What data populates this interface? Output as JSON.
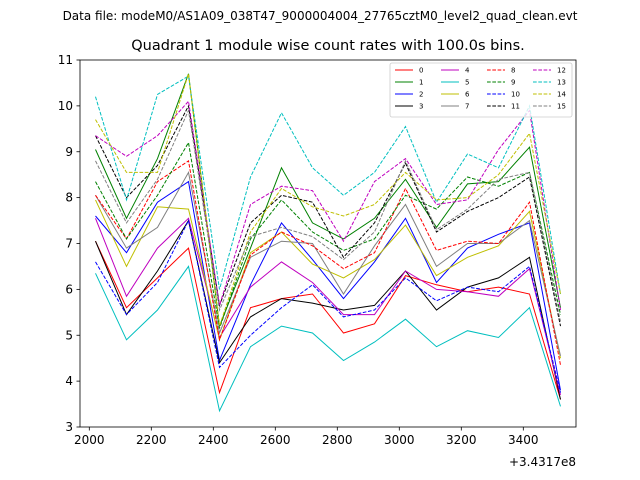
{
  "figure": {
    "suptitle": "Data file: modeM0/AS1A09_038T47_9000004004_27765cztM0_level2_quad_clean.evt",
    "title": "Quadrant 1 module wise count rates with 100.0s bins.",
    "x_offset_label": "+3.4317e8"
  },
  "chart_data": {
    "type": "line",
    "title": "Quadrant 1 module wise count rates with 100.0s bins.",
    "xlabel": "",
    "ylabel": "",
    "x_offset": "+3.4317e8",
    "xlim": [
      1970,
      3570
    ],
    "ylim": [
      3,
      11
    ],
    "xticks": [
      2000,
      2200,
      2400,
      2600,
      2800,
      3000,
      3200,
      3400
    ],
    "yticks": [
      3,
      4,
      5,
      6,
      7,
      8,
      9,
      10,
      11
    ],
    "grid": false,
    "legend": {
      "placement": "top-right",
      "columns": 4
    },
    "x": [
      2020,
      2120,
      2220,
      2320,
      2420,
      2520,
      2620,
      2720,
      2820,
      2920,
      3020,
      3120,
      3220,
      3320,
      3420,
      3520
    ],
    "series": [
      {
        "name": "0",
        "color": "#ff0000",
        "dash": "solid",
        "values": [
          7.05,
          5.6,
          6.25,
          6.9,
          3.75,
          5.6,
          5.8,
          5.9,
          5.05,
          5.25,
          6.3,
          6.1,
          5.95,
          6.05,
          5.9,
          3.6
        ]
      },
      {
        "name": "1",
        "color": "#008000",
        "dash": "solid",
        "values": [
          9.05,
          7.55,
          8.85,
          10.7,
          5.2,
          6.9,
          8.65,
          7.45,
          7.1,
          7.55,
          8.4,
          7.35,
          8.3,
          8.35,
          9.1,
          5.6
        ]
      },
      {
        "name": "2",
        "color": "#0000ff",
        "dash": "solid",
        "values": [
          7.6,
          6.8,
          7.9,
          8.35,
          4.45,
          6.1,
          7.45,
          6.65,
          5.8,
          6.6,
          7.55,
          6.15,
          6.9,
          7.2,
          7.45,
          3.8
        ]
      },
      {
        "name": "3",
        "color": "#000000",
        "dash": "solid",
        "values": [
          7.05,
          5.45,
          6.4,
          7.5,
          4.4,
          5.4,
          5.8,
          5.7,
          5.55,
          5.65,
          6.4,
          5.55,
          6.05,
          6.25,
          6.7,
          3.6
        ]
      },
      {
        "name": "4",
        "color": "#bf00bf",
        "dash": "solid",
        "values": [
          7.55,
          5.85,
          6.9,
          7.55,
          4.95,
          6.05,
          6.6,
          6.15,
          5.45,
          5.45,
          6.4,
          6.0,
          5.95,
          5.85,
          6.45,
          3.7
        ]
      },
      {
        "name": "5",
        "color": "#00bfbf",
        "dash": "solid",
        "values": [
          6.35,
          4.9,
          5.55,
          6.5,
          3.35,
          4.75,
          5.2,
          5.05,
          4.45,
          4.85,
          5.35,
          4.75,
          5.1,
          4.95,
          5.6,
          3.45
        ]
      },
      {
        "name": "6",
        "color": "#bfbf00",
        "dash": "solid",
        "values": [
          7.95,
          6.5,
          7.8,
          7.75,
          4.9,
          6.8,
          7.25,
          6.55,
          6.25,
          6.65,
          7.4,
          6.3,
          6.7,
          6.95,
          7.7,
          4.5
        ]
      },
      {
        "name": "7",
        "color": "#808080",
        "dash": "solid",
        "values": [
          8.05,
          6.9,
          7.35,
          8.55,
          5.05,
          6.7,
          7.05,
          7.0,
          5.9,
          6.95,
          7.85,
          6.5,
          7.0,
          7.0,
          7.5,
          4.55
        ]
      },
      {
        "name": "8",
        "color": "#ff0000",
        "dash": "dashed",
        "values": [
          8.05,
          7.1,
          8.35,
          8.8,
          4.9,
          6.75,
          7.25,
          6.95,
          6.45,
          6.8,
          8.2,
          6.85,
          7.05,
          7.0,
          7.9,
          4.35
        ]
      },
      {
        "name": "9",
        "color": "#008000",
        "dash": "dashed",
        "values": [
          8.35,
          7.1,
          8.05,
          9.2,
          5.15,
          7.1,
          7.95,
          7.25,
          6.85,
          7.1,
          8.05,
          7.75,
          8.45,
          8.25,
          8.55,
          5.45
        ]
      },
      {
        "name": "10",
        "color": "#0000ff",
        "dash": "dashed",
        "values": [
          6.6,
          5.45,
          6.15,
          7.5,
          4.3,
          5.0,
          5.6,
          6.1,
          5.4,
          5.55,
          6.25,
          5.75,
          6.05,
          5.95,
          6.5,
          3.75
        ]
      },
      {
        "name": "11",
        "color": "#000000",
        "dash": "dashed",
        "values": [
          9.35,
          8.0,
          8.7,
          10.0,
          5.65,
          7.45,
          8.05,
          7.9,
          6.7,
          7.45,
          8.75,
          7.25,
          7.7,
          8.0,
          8.45,
          5.2
        ]
      },
      {
        "name": "12",
        "color": "#bf00bf",
        "dash": "dashed",
        "values": [
          9.35,
          8.9,
          9.35,
          10.1,
          5.65,
          7.85,
          8.25,
          8.15,
          7.05,
          8.35,
          8.85,
          7.85,
          7.95,
          9.05,
          9.9,
          5.55
        ]
      },
      {
        "name": "13",
        "color": "#00bfbf",
        "dash": "dashed",
        "values": [
          10.2,
          7.95,
          10.25,
          10.65,
          6.0,
          8.45,
          9.85,
          8.65,
          8.05,
          8.55,
          9.55,
          7.9,
          8.95,
          8.65,
          10.0,
          5.9
        ]
      },
      {
        "name": "14",
        "color": "#bfbf00",
        "dash": "dashed",
        "values": [
          9.7,
          8.55,
          8.55,
          10.7,
          5.2,
          7.25,
          8.2,
          7.8,
          7.6,
          7.85,
          8.55,
          7.95,
          8.0,
          8.5,
          9.4,
          5.9
        ]
      },
      {
        "name": "15",
        "color": "#808080",
        "dash": "dashed",
        "values": [
          8.8,
          7.45,
          8.4,
          9.9,
          5.55,
          7.15,
          7.35,
          7.15,
          6.65,
          7.25,
          8.8,
          7.3,
          7.75,
          8.4,
          8.55,
          5.3
        ]
      }
    ]
  }
}
